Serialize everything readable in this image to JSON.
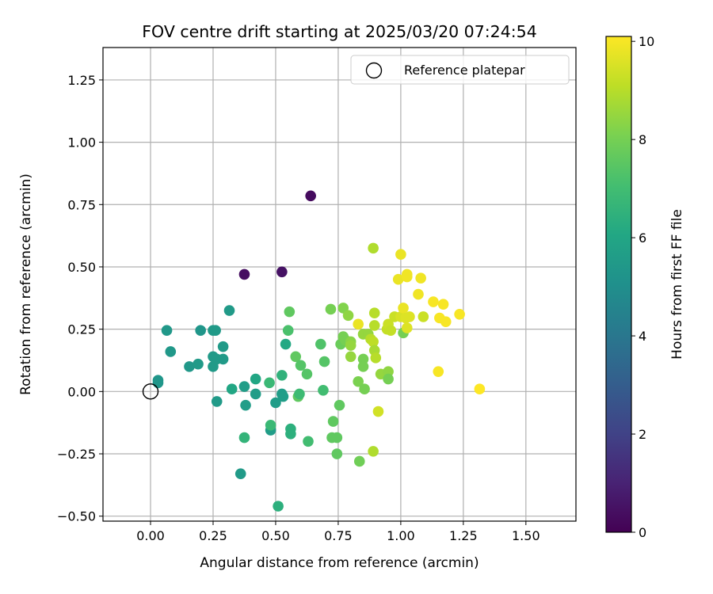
{
  "chart_data": {
    "type": "scatter",
    "title": "FOV centre drift starting at 2025/03/20 07:24:54",
    "xlabel": "Angular distance from reference (arcmin)",
    "ylabel": "Rotation from reference (arcmin)",
    "xlim": [
      -0.19,
      1.7
    ],
    "ylim": [
      -0.52,
      1.38
    ],
    "xticks": [
      "0.00",
      "0.25",
      "0.50",
      "0.75",
      "1.00",
      "1.25",
      "1.50"
    ],
    "xtick_values": [
      0,
      0.25,
      0.5,
      0.75,
      1.0,
      1.25,
      1.5
    ],
    "yticks": [
      "−0.50",
      "−0.25",
      "0.00",
      "0.25",
      "0.50",
      "0.75",
      "1.00",
      "1.25"
    ],
    "ytick_values": [
      -0.5,
      -0.25,
      0,
      0.25,
      0.5,
      0.75,
      1.0,
      1.25
    ],
    "grid": true,
    "colormap": "viridis",
    "colorbar": {
      "label": "Hours from first FF file",
      "range": [
        0,
        10.1
      ],
      "ticks": [
        "0",
        "2",
        "4",
        "6",
        "8",
        "10"
      ],
      "tick_values": [
        0,
        2,
        4,
        6,
        8,
        10
      ]
    },
    "legend": {
      "position": "top-right",
      "entries": [
        {
          "label": "Reference platepar",
          "marker": "open-circle"
        }
      ]
    },
    "reference_point": {
      "x": 0.0,
      "y": 0.0
    },
    "points": [
      {
        "x": 0.64,
        "y": 0.785,
        "h": 0.3
      },
      {
        "x": 0.375,
        "y": 0.47,
        "h": 0.4
      },
      {
        "x": 0.525,
        "y": 0.48,
        "h": 0.5
      },
      {
        "x": 0.03,
        "y": 0.045,
        "h": 5.3
      },
      {
        "x": 0.03,
        "y": 0.035,
        "h": 5.3
      },
      {
        "x": 0.065,
        "y": 0.245,
        "h": 5.4
      },
      {
        "x": 0.08,
        "y": 0.16,
        "h": 5.4
      },
      {
        "x": 0.155,
        "y": 0.1,
        "h": 5.4
      },
      {
        "x": 0.2,
        "y": 0.245,
        "h": 5.3
      },
      {
        "x": 0.19,
        "y": 0.11,
        "h": 5.5
      },
      {
        "x": 0.25,
        "y": 0.245,
        "h": 5.5
      },
      {
        "x": 0.26,
        "y": 0.245,
        "h": 5.5
      },
      {
        "x": 0.25,
        "y": 0.14,
        "h": 5.5
      },
      {
        "x": 0.25,
        "y": 0.1,
        "h": 5.5
      },
      {
        "x": 0.265,
        "y": 0.13,
        "h": 5.5
      },
      {
        "x": 0.29,
        "y": 0.18,
        "h": 5.5
      },
      {
        "x": 0.29,
        "y": 0.13,
        "h": 5.5
      },
      {
        "x": 0.315,
        "y": 0.325,
        "h": 5.5
      },
      {
        "x": 0.265,
        "y": -0.04,
        "h": 5.5
      },
      {
        "x": 0.325,
        "y": 0.01,
        "h": 6.0
      },
      {
        "x": 0.36,
        "y": -0.33,
        "h": 5.5
      },
      {
        "x": 0.375,
        "y": 0.02,
        "h": 5.6
      },
      {
        "x": 0.38,
        "y": -0.055,
        "h": 5.6
      },
      {
        "x": 0.42,
        "y": 0.05,
        "h": 6.0
      },
      {
        "x": 0.42,
        "y": -0.01,
        "h": 5.6
      },
      {
        "x": 0.375,
        "y": -0.185,
        "h": 6.6
      },
      {
        "x": 0.475,
        "y": 0.035,
        "h": 6.8
      },
      {
        "x": 0.48,
        "y": -0.155,
        "h": 5.6
      },
      {
        "x": 0.48,
        "y": -0.135,
        "h": 6.8
      },
      {
        "x": 0.5,
        "y": -0.045,
        "h": 5.6
      },
      {
        "x": 0.51,
        "y": -0.46,
        "h": 6.4
      },
      {
        "x": 0.525,
        "y": -0.01,
        "h": 5.6
      },
      {
        "x": 0.53,
        "y": -0.02,
        "h": 5.6
      },
      {
        "x": 0.525,
        "y": 0.065,
        "h": 6.5
      },
      {
        "x": 0.54,
        "y": 0.19,
        "h": 6.1
      },
      {
        "x": 0.55,
        "y": 0.245,
        "h": 7.2
      },
      {
        "x": 0.555,
        "y": 0.32,
        "h": 7.6
      },
      {
        "x": 0.56,
        "y": -0.15,
        "h": 6.4
      },
      {
        "x": 0.56,
        "y": -0.17,
        "h": 6.4
      },
      {
        "x": 0.58,
        "y": 0.14,
        "h": 7.6
      },
      {
        "x": 0.59,
        "y": -0.02,
        "h": 7.6
      },
      {
        "x": 0.595,
        "y": -0.01,
        "h": 6.9
      },
      {
        "x": 0.6,
        "y": 0.105,
        "h": 7.4
      },
      {
        "x": 0.625,
        "y": 0.07,
        "h": 7.4
      },
      {
        "x": 0.63,
        "y": -0.2,
        "h": 7.0
      },
      {
        "x": 0.68,
        "y": 0.19,
        "h": 7.3
      },
      {
        "x": 0.69,
        "y": 0.005,
        "h": 7.0
      },
      {
        "x": 0.695,
        "y": 0.12,
        "h": 7.4
      },
      {
        "x": 0.72,
        "y": 0.33,
        "h": 8.0
      },
      {
        "x": 0.725,
        "y": -0.185,
        "h": 7.6
      },
      {
        "x": 0.73,
        "y": -0.12,
        "h": 7.6
      },
      {
        "x": 0.745,
        "y": -0.185,
        "h": 7.6
      },
      {
        "x": 0.745,
        "y": -0.25,
        "h": 7.6
      },
      {
        "x": 0.76,
        "y": 0.19,
        "h": 7.8
      },
      {
        "x": 0.755,
        "y": -0.055,
        "h": 7.6
      },
      {
        "x": 0.77,
        "y": 0.335,
        "h": 8.2
      },
      {
        "x": 0.77,
        "y": 0.22,
        "h": 8.0
      },
      {
        "x": 0.78,
        "y": 0.205,
        "h": 8.0
      },
      {
        "x": 0.79,
        "y": 0.305,
        "h": 8.4
      },
      {
        "x": 0.8,
        "y": 0.2,
        "h": 8.3
      },
      {
        "x": 0.8,
        "y": 0.14,
        "h": 8.5
      },
      {
        "x": 0.8,
        "y": 0.185,
        "h": 8.5
      },
      {
        "x": 0.83,
        "y": 0.27,
        "h": 9.8
      },
      {
        "x": 0.83,
        "y": 0.04,
        "h": 8.1
      },
      {
        "x": 0.835,
        "y": -0.28,
        "h": 7.9
      },
      {
        "x": 0.85,
        "y": 0.13,
        "h": 8.0
      },
      {
        "x": 0.85,
        "y": 0.1,
        "h": 8.0
      },
      {
        "x": 0.855,
        "y": 0.01,
        "h": 8.0
      },
      {
        "x": 0.85,
        "y": 0.23,
        "h": 8.5
      },
      {
        "x": 0.87,
        "y": 0.23,
        "h": 8.5
      },
      {
        "x": 0.88,
        "y": 0.21,
        "h": 9.0
      },
      {
        "x": 0.89,
        "y": 0.575,
        "h": 8.9
      },
      {
        "x": 0.89,
        "y": 0.2,
        "h": 9.1
      },
      {
        "x": 0.895,
        "y": 0.315,
        "h": 9.0
      },
      {
        "x": 0.895,
        "y": 0.265,
        "h": 9.0
      },
      {
        "x": 0.895,
        "y": 0.165,
        "h": 8.8
      },
      {
        "x": 0.9,
        "y": 0.135,
        "h": 9.0
      },
      {
        "x": 0.89,
        "y": -0.24,
        "h": 8.9
      },
      {
        "x": 0.91,
        "y": -0.08,
        "h": 9.4
      },
      {
        "x": 0.92,
        "y": 0.07,
        "h": 8.5
      },
      {
        "x": 0.945,
        "y": 0.25,
        "h": 9.2
      },
      {
        "x": 0.95,
        "y": 0.27,
        "h": 9.3
      },
      {
        "x": 0.95,
        "y": 0.08,
        "h": 8.4
      },
      {
        "x": 0.95,
        "y": 0.05,
        "h": 8.0
      },
      {
        "x": 0.96,
        "y": 0.245,
        "h": 9.2
      },
      {
        "x": 0.975,
        "y": 0.3,
        "h": 9.3
      },
      {
        "x": 0.99,
        "y": 0.45,
        "h": 9.8
      },
      {
        "x": 1.0,
        "y": 0.55,
        "h": 9.8
      },
      {
        "x": 1.0,
        "y": 0.3,
        "h": 9.5
      },
      {
        "x": 1.01,
        "y": 0.235,
        "h": 8.0
      },
      {
        "x": 1.01,
        "y": 0.335,
        "h": 9.8
      },
      {
        "x": 1.02,
        "y": 0.295,
        "h": 9.6
      },
      {
        "x": 1.025,
        "y": 0.47,
        "h": 9.9
      },
      {
        "x": 1.025,
        "y": 0.46,
        "h": 9.9
      },
      {
        "x": 1.025,
        "y": 0.255,
        "h": 9.6
      },
      {
        "x": 1.035,
        "y": 0.3,
        "h": 9.6
      },
      {
        "x": 1.07,
        "y": 0.39,
        "h": 9.9
      },
      {
        "x": 1.08,
        "y": 0.455,
        "h": 9.9
      },
      {
        "x": 1.09,
        "y": 0.3,
        "h": 9.3
      },
      {
        "x": 1.13,
        "y": 0.36,
        "h": 10.0
      },
      {
        "x": 1.15,
        "y": 0.08,
        "h": 10.0
      },
      {
        "x": 1.155,
        "y": 0.295,
        "h": 10.0
      },
      {
        "x": 1.17,
        "y": 0.35,
        "h": 10.0
      },
      {
        "x": 1.18,
        "y": 0.28,
        "h": 10.0
      },
      {
        "x": 1.235,
        "y": 0.31,
        "h": 10.0
      },
      {
        "x": 1.315,
        "y": 0.01,
        "h": 10.1
      }
    ]
  }
}
